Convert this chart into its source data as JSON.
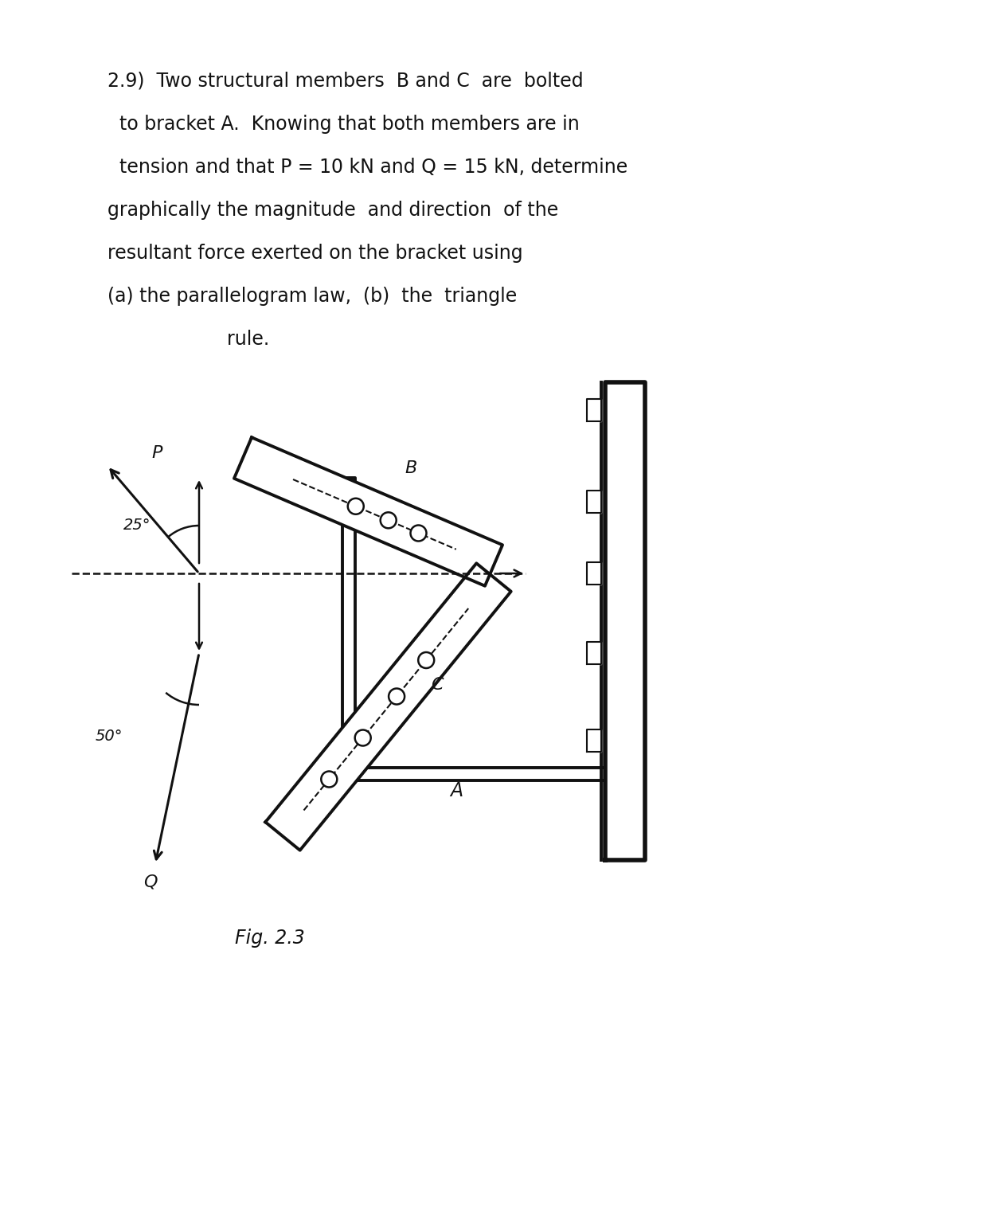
{
  "bg_color": "#ffffff",
  "text_color": "#111111",
  "line_color": "#111111",
  "title_lines": [
    "2.9)  Two structural members  B and C  are  bolted",
    "  to bracket A.  Knowing that both members are in",
    "  tension and that P = 10 kN and Q = 15 kN, determine",
    "graphically the magnitude  and direction  of the",
    "resultant force exerted on the bracket using",
    "(a) the parallelogram law,  (b)  the  triangle",
    "                    rule."
  ],
  "fig_label": "Fig. 2.3",
  "angle_P_label": "25°",
  "angle_Q_label": "50°",
  "P_label": "P",
  "Q_label": "Q",
  "B_label": "B",
  "C_label": "C",
  "A_label": "A"
}
